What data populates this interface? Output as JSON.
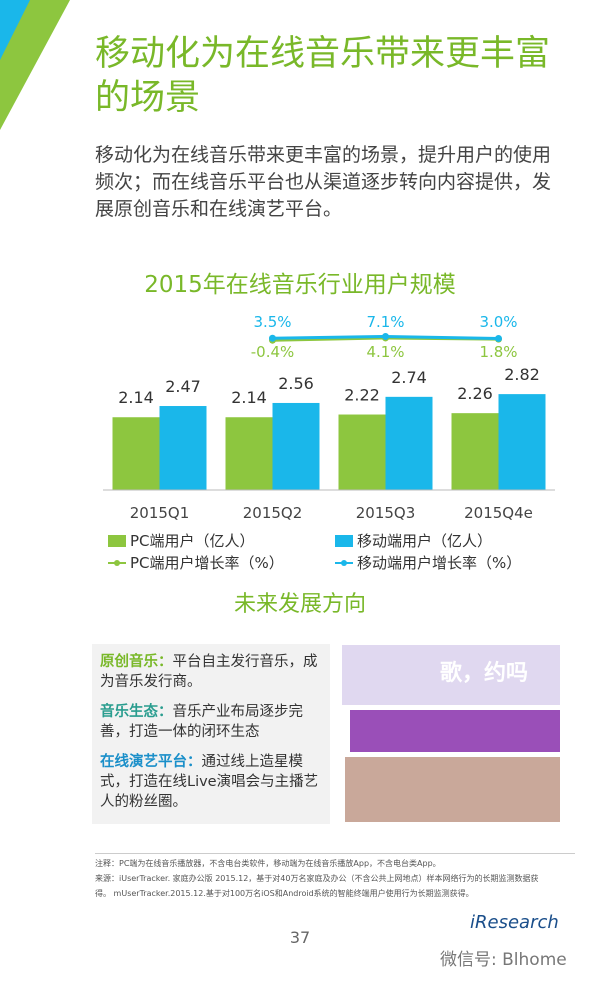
{
  "header": {
    "title": "移动化为在线音乐带来更丰富的场景",
    "subtitle": "移动化为在线音乐带来更丰富的场景，提升用户的使用频次；而在线音乐平台也从渠道逐步转向内容提供，发展原创音乐和在线演艺平台。"
  },
  "chart_data": {
    "type": "bar",
    "title": "2015年在线音乐行业用户规模",
    "categories": [
      "2015Q1",
      "2015Q2",
      "2015Q3",
      "2015Q4e"
    ],
    "ylim": [
      0,
      3
    ],
    "y2lim": [
      -60,
      60
    ],
    "series": [
      {
        "name": "PC端用户（亿人）",
        "color": "#8dc63f",
        "values": [
          2.14,
          2.14,
          2.22,
          2.26
        ]
      },
      {
        "name": "移动端用户（亿人）",
        "color": "#1ab7ea",
        "values": [
          2.47,
          2.56,
          2.74,
          2.82
        ]
      },
      {
        "name": "PC端用户增长率（%）",
        "type": "line",
        "axis": "y2",
        "color": "#8dc63f",
        "values": [
          null,
          -0.4,
          4.1,
          1.8
        ],
        "value_labels": [
          null,
          "-0.4%",
          "4.1%",
          "1.8%"
        ]
      },
      {
        "name": "移动端用户增长率（%）",
        "type": "line",
        "axis": "y2",
        "color": "#1ab7ea",
        "values": [
          null,
          3.5,
          7.1,
          3.0
        ],
        "value_labels": [
          null,
          "3.5%",
          "7.1%",
          "3.0%"
        ]
      }
    ]
  },
  "section": {
    "title": "未来发展方向",
    "items": [
      {
        "label": "原创音乐：",
        "text": "平台自主发行音乐，成为音乐发行商。"
      },
      {
        "label": "音乐生态：",
        "text": "音乐产业布局逐步完善，打造一体的闭环生态"
      },
      {
        "label": "在线演艺平台：",
        "text": "通过线上造星模式，打造在线Live演唱会与主播艺人的粉丝圈。"
      }
    ],
    "image_caption": "歌，约吗"
  },
  "notes": [
    "注释：PC端为在线音乐播放器，不含电台类软件，移动端为在线音乐播放App，不含电台类App。",
    "来源：iUserTracker. 家庭办公版 2015.12，基于对40万名家庭及办公（不含公共上网地点）样本网络行为的长期监测数据获",
    "得。 mUserTracker.2015.12.基于对100万名iOS和Android系统的智能终端用户使用行为长期监测获得。"
  ],
  "footer": {
    "page": "37",
    "logo": "iResearch",
    "watermark": "微信号: Blhome"
  }
}
